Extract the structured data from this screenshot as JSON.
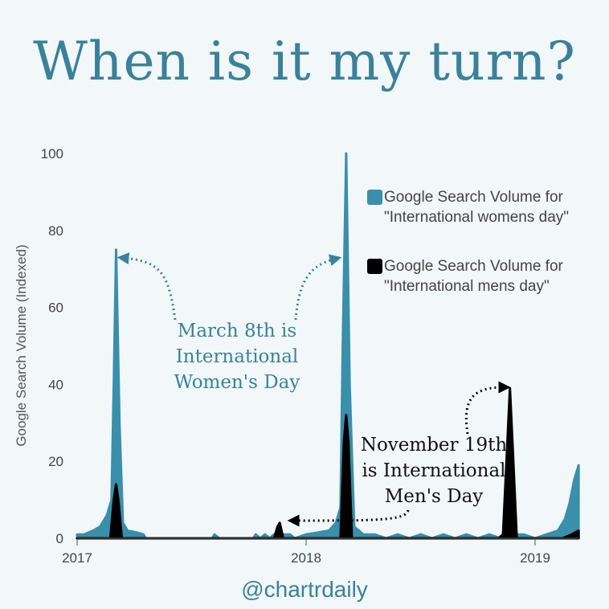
{
  "title": "When is it my turn?",
  "footer": "@chartrdaily",
  "colors": {
    "women": "#3a8fab",
    "men": "#000000",
    "text": "#3a8299"
  },
  "annotations": {
    "women": [
      "March 8th is",
      "International",
      "Women's Day"
    ],
    "men": [
      "November 19th",
      "is International",
      "Men's Day"
    ]
  },
  "chart_data": {
    "type": "area",
    "title": "When is it my turn?",
    "xlabel": "",
    "ylabel": "Google Search Volume (Indexed)",
    "ylim": [
      0,
      100
    ],
    "xlim": [
      2017,
      2019.19
    ],
    "yticks": [
      0,
      20,
      40,
      60,
      80,
      100
    ],
    "xticks": [
      2017,
      2018,
      2019
    ],
    "legend_position": "right",
    "series": [
      {
        "name": "Google Search Volume for \"International womens day\"",
        "color": "#3a8fab",
        "x": [
          2017,
          2017.03,
          2017.07,
          2017.1,
          2017.13,
          2017.15,
          2017.16,
          2017.17,
          2017.185,
          2017.2,
          2017.22,
          2017.26,
          2017.29,
          2017.3,
          2017.59,
          2017.6,
          2017.62,
          2017.77,
          2017.78,
          2017.8,
          2017.82,
          2017.84,
          2017.86,
          2017.93,
          2017.95,
          2018.0,
          2018.05,
          2018.1,
          2018.13,
          2018.15,
          2018.16,
          2018.175,
          2018.19,
          2018.21,
          2018.25,
          2018.3,
          2018.35,
          2018.4,
          2018.45,
          2018.5,
          2018.55,
          2018.6,
          2018.65,
          2018.7,
          2018.75,
          2018.8,
          2018.85,
          2018.9,
          2018.95,
          2019.0,
          2019.05,
          2019.1,
          2019.13,
          2019.15,
          2019.17,
          2019.19
        ],
        "y": [
          1,
          1,
          2,
          3,
          6,
          10,
          40,
          75,
          30,
          4,
          2,
          1.5,
          1,
          0,
          0,
          1,
          0,
          0,
          1,
          0,
          1,
          0,
          1,
          1,
          0,
          1,
          1.5,
          2,
          4,
          8,
          50,
          100,
          40,
          3,
          1,
          1,
          0,
          1,
          0,
          1,
          0,
          1,
          0,
          1,
          0,
          1,
          0,
          1,
          1,
          0,
          1,
          2,
          5,
          9,
          15,
          19
        ]
      },
      {
        "name": "Google Search Volume for \"International mens day\"",
        "color": "#000000",
        "x": [
          2017,
          2017.145,
          2017.16,
          2017.17,
          2017.18,
          2017.195,
          2017.3,
          2017.86,
          2017.875,
          2017.885,
          2017.9,
          2018.0,
          2018.15,
          2018.165,
          2018.175,
          2018.185,
          2018.2,
          2018.84,
          2018.86,
          2018.875,
          2018.89,
          2018.905,
          2018.92,
          2019.12,
          2019.16,
          2019.19
        ],
        "y": [
          0,
          0,
          10,
          14,
          10,
          0,
          0,
          0,
          3,
          4,
          0,
          0,
          0,
          25,
          32,
          25,
          0,
          0,
          1,
          20,
          39,
          20,
          0,
          0,
          1,
          2
        ]
      }
    ]
  }
}
